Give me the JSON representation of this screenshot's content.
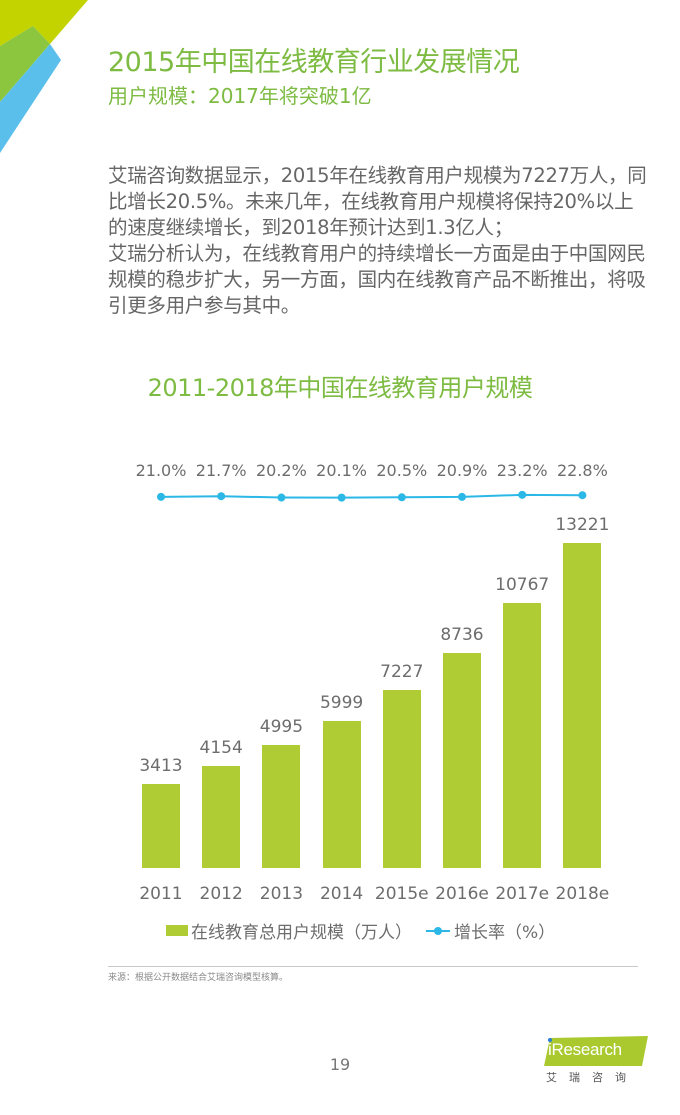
{
  "header": {
    "title": "2015年中国在线教育行业发展情况",
    "subtitle": "用户规模：2017年将突破1亿"
  },
  "body": {
    "paragraphs": [
      "艾瑞咨询数据显示，2015年在线教育用户规模为7227万人，同比增长20.5%。未来几年，在线教育用户规模将保持20%以上的速度继续增长，到2018年预计达到1.3亿人；",
      "艾瑞分析认为，在线教育用户的持续增长一方面是由于中国网民规模的稳步扩大，另一方面，国内在线教育产品不断推出，将吸引更多用户参与其中。"
    ]
  },
  "colors": {
    "title_green": "#7dbb42",
    "bar_green": "#b0cc34",
    "line_blue": "#2bb8e6",
    "text_gray": "#666666"
  },
  "chart_data": {
    "type": "bar",
    "title": "2011-2018年中国在线教育用户规模",
    "categories": [
      "2011",
      "2012",
      "2013",
      "2014",
      "2015e",
      "2016e",
      "2017e",
      "2018e"
    ],
    "series": [
      {
        "name": "在线教育总用户规模（万人）",
        "type": "bar",
        "values": [
          3413,
          4154,
          4995,
          5999,
          7227,
          8736,
          10767,
          13221
        ],
        "labels": [
          "3413",
          "4154",
          "4995",
          "5999",
          "7227",
          "8736",
          "10767",
          "13221"
        ]
      },
      {
        "name": "增长率（%）",
        "type": "line",
        "values": [
          21.0,
          21.7,
          20.2,
          20.1,
          20.5,
          20.9,
          23.2,
          22.8
        ],
        "labels": [
          "21.0%",
          "21.7%",
          "20.2%",
          "20.1%",
          "20.5%",
          "20.9%",
          "23.2%",
          "22.8%"
        ]
      }
    ],
    "xlabel": "",
    "ylabel": "",
    "grid": false,
    "legend_position": "bottom",
    "legend": [
      "在线教育总用户规模（万人）",
      "增长率（%）"
    ]
  },
  "footer": {
    "source": "来源：根据公开数据结合艾瑞咨询模型核算。",
    "page_number": "19",
    "logo_text": "Research",
    "logo_i": "i",
    "logo_cn": "艾瑞咨询"
  }
}
